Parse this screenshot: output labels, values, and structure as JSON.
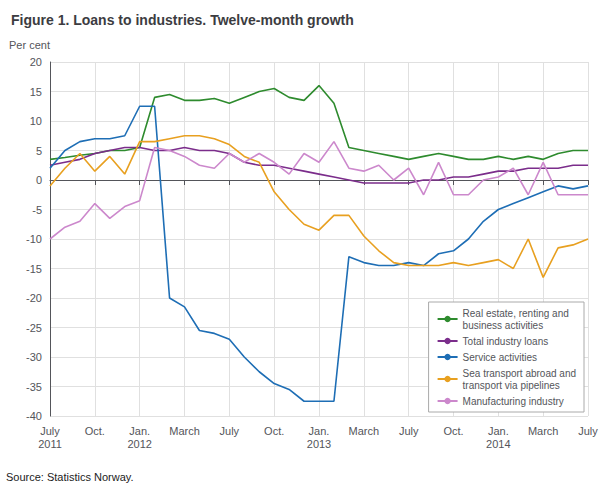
{
  "chart_data": {
    "type": "line",
    "title": "Figure 1. Loans to industries. Twelve-month growth",
    "ylabel": "Per cent",
    "annotations": [
      "Source: Statistics Norway."
    ],
    "categories": [
      "July\n2011",
      null,
      null,
      "Oct.",
      null,
      null,
      "Jan.\n2012",
      null,
      null,
      "March",
      null,
      null,
      "July",
      null,
      null,
      "Oct.",
      null,
      null,
      "Jan.\n2013",
      null,
      null,
      "March",
      null,
      null,
      "July",
      null,
      null,
      "Oct.",
      null,
      null,
      "Jan.\n2014",
      null,
      null,
      "March",
      null,
      null,
      "July"
    ],
    "series": [
      {
        "name": "Real estate, renting and\nbusiness activities",
        "color": "#2e8b2e",
        "values": [
          3.5,
          3.8,
          4.2,
          4.5,
          5.0,
          5.0,
          5.5,
          14.0,
          14.5,
          13.5,
          13.5,
          13.8,
          13.0,
          14.0,
          15.0,
          15.5,
          14.0,
          13.5,
          16.0,
          13.0,
          5.5,
          5.0,
          4.5,
          4.0,
          3.5,
          4.0,
          4.5,
          4.0,
          3.5,
          3.5,
          4.0,
          3.5,
          4.0,
          3.5,
          4.5,
          5.0,
          5.0
        ]
      },
      {
        "name": "Total industry loans",
        "color": "#7b2d8b",
        "values": [
          2.5,
          3.0,
          3.5,
          4.5,
          5.0,
          5.5,
          5.5,
          5.0,
          5.0,
          5.5,
          5.0,
          5.0,
          4.5,
          3.0,
          2.5,
          2.5,
          2.0,
          1.5,
          1.0,
          0.5,
          0.0,
          -0.5,
          -0.5,
          -0.5,
          -0.5,
          0.0,
          0.0,
          0.5,
          0.5,
          1.0,
          1.5,
          1.5,
          2.0,
          2.0,
          2.0,
          2.5,
          2.5
        ]
      },
      {
        "name": "Service activities",
        "color": "#1e6eb5",
        "values": [
          2.0,
          5.0,
          6.5,
          7.0,
          7.0,
          7.5,
          12.5,
          12.5,
          -20.0,
          -21.5,
          -25.5,
          -26.0,
          -27.0,
          -30.0,
          -32.5,
          -34.5,
          -35.5,
          -37.5,
          -37.5,
          -37.5,
          -13.0,
          -14.0,
          -14.5,
          -14.5,
          -14.0,
          -14.5,
          -12.5,
          -12.0,
          -10.0,
          -7.0,
          -5.0,
          -4.0,
          -3.0,
          -2.0,
          -1.0,
          -1.5,
          -1.0
        ]
      },
      {
        "name": "Sea transport abroad and\ntransport via pipelines",
        "color": "#e8a020",
        "values": [
          -1.0,
          2.0,
          4.5,
          1.5,
          4.0,
          1.0,
          6.5,
          6.5,
          7.0,
          7.5,
          7.5,
          7.0,
          6.0,
          4.0,
          3.0,
          -2.0,
          -5.0,
          -7.5,
          -8.5,
          -6.0,
          -6.0,
          -9.5,
          -12.0,
          -14.0,
          -14.5,
          -14.5,
          -14.5,
          -14.0,
          -14.5,
          -14.0,
          -13.5,
          -15.0,
          -10.0,
          -16.5,
          -11.5,
          -11.0,
          -10.0
        ]
      },
      {
        "name": "Manufacturing industry",
        "color": "#cc88cc",
        "values": [
          -10.0,
          -8.0,
          -7.0,
          -4.0,
          -6.5,
          -4.5,
          -3.5,
          5.5,
          5.0,
          4.0,
          2.5,
          2.0,
          4.5,
          3.0,
          4.5,
          3.0,
          1.0,
          4.5,
          3.0,
          6.5,
          2.0,
          1.5,
          2.5,
          0.0,
          2.0,
          -2.5,
          3.0,
          -2.5,
          -2.5,
          0.0,
          0.5,
          2.0,
          -2.5,
          3.0,
          -2.5,
          -2.5,
          -2.5
        ]
      }
    ],
    "ylim": [
      -40,
      20
    ],
    "yticks": [
      -40,
      -35,
      -30,
      -25,
      -20,
      -15,
      -10,
      -5,
      0,
      5,
      10,
      15,
      20
    ],
    "grid": true,
    "legend": "lower right"
  }
}
